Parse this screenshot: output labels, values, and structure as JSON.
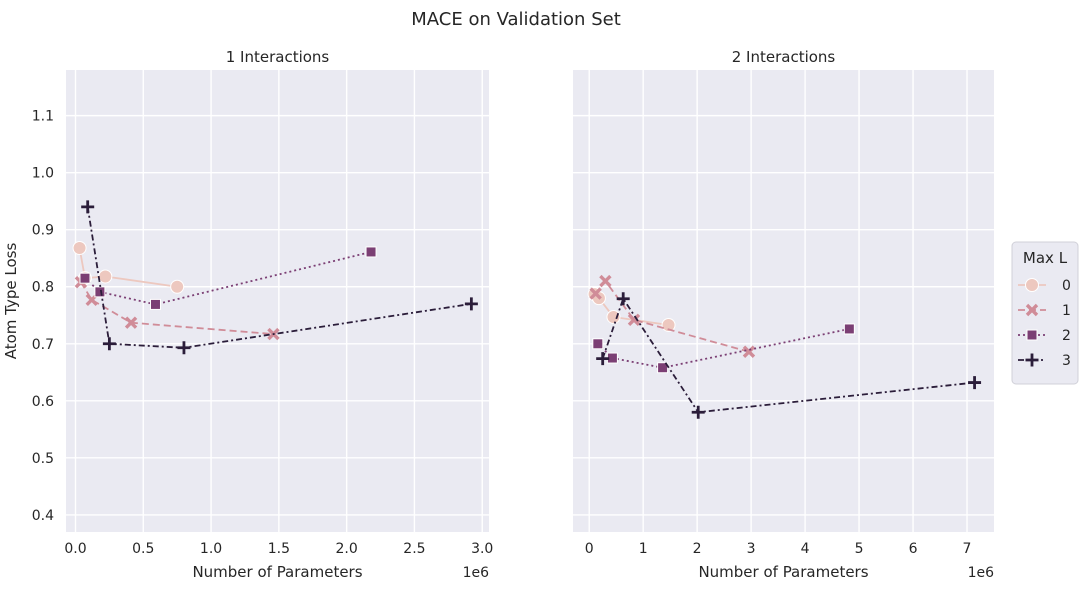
{
  "suptitle": "MACE on Validation Set",
  "chart_data": [
    {
      "type": "line",
      "title": "1 Interactions",
      "xlabel": "Number of Parameters",
      "ylabel": "Atom Type Loss",
      "x_offset_label": "1e6",
      "xlim": [
        -0.07,
        3.05
      ],
      "ylim": [
        0.37,
        1.18
      ],
      "xticks": [
        0,
        0.5,
        1.0,
        1.5,
        2.0,
        2.5,
        3.0
      ],
      "xtick_labels": [
        "0.0",
        "0.5",
        "1.0",
        "1.5",
        "2.0",
        "2.5",
        "3.0"
      ],
      "yticks": [
        0.4,
        0.5,
        0.6,
        0.7,
        0.8,
        0.9,
        1.0,
        1.1
      ],
      "ytick_labels": [
        "0.4",
        "0.5",
        "0.6",
        "0.7",
        "0.8",
        "0.9",
        "1.0",
        "1.1"
      ],
      "grid": true,
      "series": [
        {
          "name": "0",
          "color": "#edc8bf",
          "marker": "circle",
          "dash": "solid",
          "x": [
            0.03,
            0.07,
            0.22,
            0.75
          ],
          "y": [
            0.868,
            0.815,
            0.818,
            0.8
          ]
        },
        {
          "name": "1",
          "color": "#d08c98",
          "marker": "x",
          "dash": "dashed",
          "x": [
            0.04,
            0.12,
            0.41,
            1.46
          ],
          "y": [
            0.808,
            0.777,
            0.737,
            0.717
          ]
        },
        {
          "name": "2",
          "color": "#7b3f74",
          "marker": "square",
          "dash": "dotted",
          "x": [
            0.07,
            0.18,
            0.59,
            2.18
          ],
          "y": [
            0.815,
            0.791,
            0.769,
            0.861
          ]
        },
        {
          "name": "3",
          "color": "#2b1d3a",
          "marker": "plus",
          "dash": "dashdot",
          "x": [
            0.09,
            0.25,
            0.8,
            2.92
          ],
          "y": [
            0.94,
            0.7,
            0.693,
            0.77
          ]
        }
      ]
    },
    {
      "type": "line",
      "title": "2 Interactions",
      "xlabel": "Number of Parameters",
      "ylabel": "",
      "x_offset_label": "1e6",
      "xlim": [
        -0.3,
        7.5
      ],
      "ylim": [
        0.37,
        1.18
      ],
      "xticks": [
        0,
        1,
        2,
        3,
        4,
        5,
        6,
        7
      ],
      "xtick_labels": [
        "0",
        "1",
        "2",
        "3",
        "4",
        "5",
        "6",
        "7"
      ],
      "yticks": [
        0.4,
        0.5,
        0.6,
        0.7,
        0.8,
        0.9,
        1.0,
        1.1
      ],
      "ytick_labels": [],
      "grid": true,
      "series": [
        {
          "name": "0",
          "color": "#edc8bf",
          "marker": "circle",
          "dash": "solid",
          "x": [
            0.1,
            0.18,
            0.45,
            1.47
          ],
          "y": [
            0.787,
            0.78,
            0.747,
            0.733
          ]
        },
        {
          "name": "1",
          "color": "#d08c98",
          "marker": "x",
          "dash": "dashed",
          "x": [
            0.12,
            0.3,
            0.83,
            2.96
          ],
          "y": [
            0.788,
            0.81,
            0.742,
            0.686
          ]
        },
        {
          "name": "2",
          "color": "#7b3f74",
          "marker": "square",
          "dash": "dotted",
          "x": [
            0.16,
            0.43,
            1.36,
            4.82
          ],
          "y": [
            0.7,
            0.675,
            0.658,
            0.726
          ]
        },
        {
          "name": "3",
          "color": "#2b1d3a",
          "marker": "plus",
          "dash": "dashdot",
          "x": [
            0.25,
            0.63,
            2.02,
            7.14
          ],
          "y": [
            0.674,
            0.779,
            0.58,
            0.632
          ]
        }
      ]
    }
  ],
  "legend": {
    "title": "Max L",
    "entries": [
      "0",
      "1",
      "2",
      "3"
    ],
    "placement": "right"
  },
  "colors": {
    "axes_bg": "#eaeaf2",
    "grid": "#ffffff",
    "text": "#262626"
  }
}
